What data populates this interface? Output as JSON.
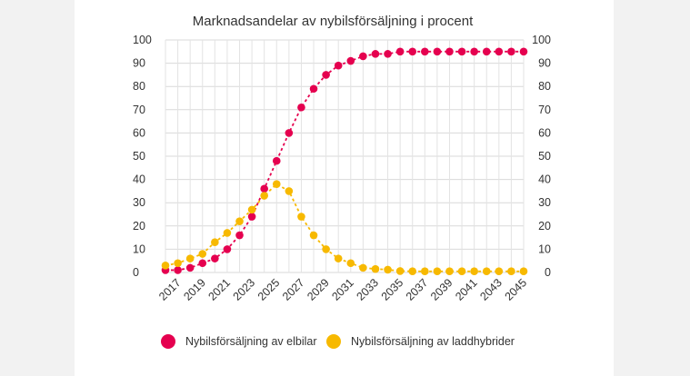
{
  "chart_data": {
    "type": "line",
    "title": "Marknadsandelar av nybilsförsäljning i procent",
    "xlabel": "",
    "ylabel": "",
    "ylim": [
      0,
      100
    ],
    "yticks": [
      0,
      10,
      20,
      30,
      40,
      50,
      60,
      70,
      80,
      90,
      100
    ],
    "x": [
      2016,
      2017,
      2018,
      2019,
      2020,
      2021,
      2022,
      2023,
      2024,
      2025,
      2026,
      2027,
      2028,
      2029,
      2030,
      2031,
      2032,
      2033,
      2034,
      2035,
      2036,
      2037,
      2038,
      2039,
      2040,
      2041,
      2042,
      2043,
      2044,
      2045
    ],
    "xtick_labels": [
      "2017",
      "2019",
      "2021",
      "2023",
      "2025",
      "2027",
      "2029",
      "2031",
      "2033",
      "2035",
      "2037",
      "2039",
      "2041",
      "2043",
      "2045"
    ],
    "grid": true,
    "legend_position": "bottom",
    "series": [
      {
        "name": "Nybilsförsäljning av elbilar",
        "color": "#e5004f",
        "values": [
          1,
          1,
          2,
          4,
          6,
          10,
          16,
          24,
          36,
          48,
          60,
          71,
          79,
          85,
          89,
          91,
          93,
          94,
          94,
          95,
          95,
          95,
          95,
          95,
          95,
          95,
          95,
          95,
          95,
          95
        ]
      },
      {
        "name": "Nybilsförsäljning av laddhybrider",
        "color": "#f7b900",
        "values": [
          3,
          4,
          6,
          8,
          13,
          17,
          22,
          27,
          33,
          38,
          35,
          24,
          16,
          10,
          6,
          4,
          2,
          1.5,
          1.2,
          0.6,
          0.5,
          0.5,
          0.5,
          0.5,
          0.5,
          0.5,
          0.5,
          0.5,
          0.5,
          0.5
        ]
      }
    ]
  }
}
